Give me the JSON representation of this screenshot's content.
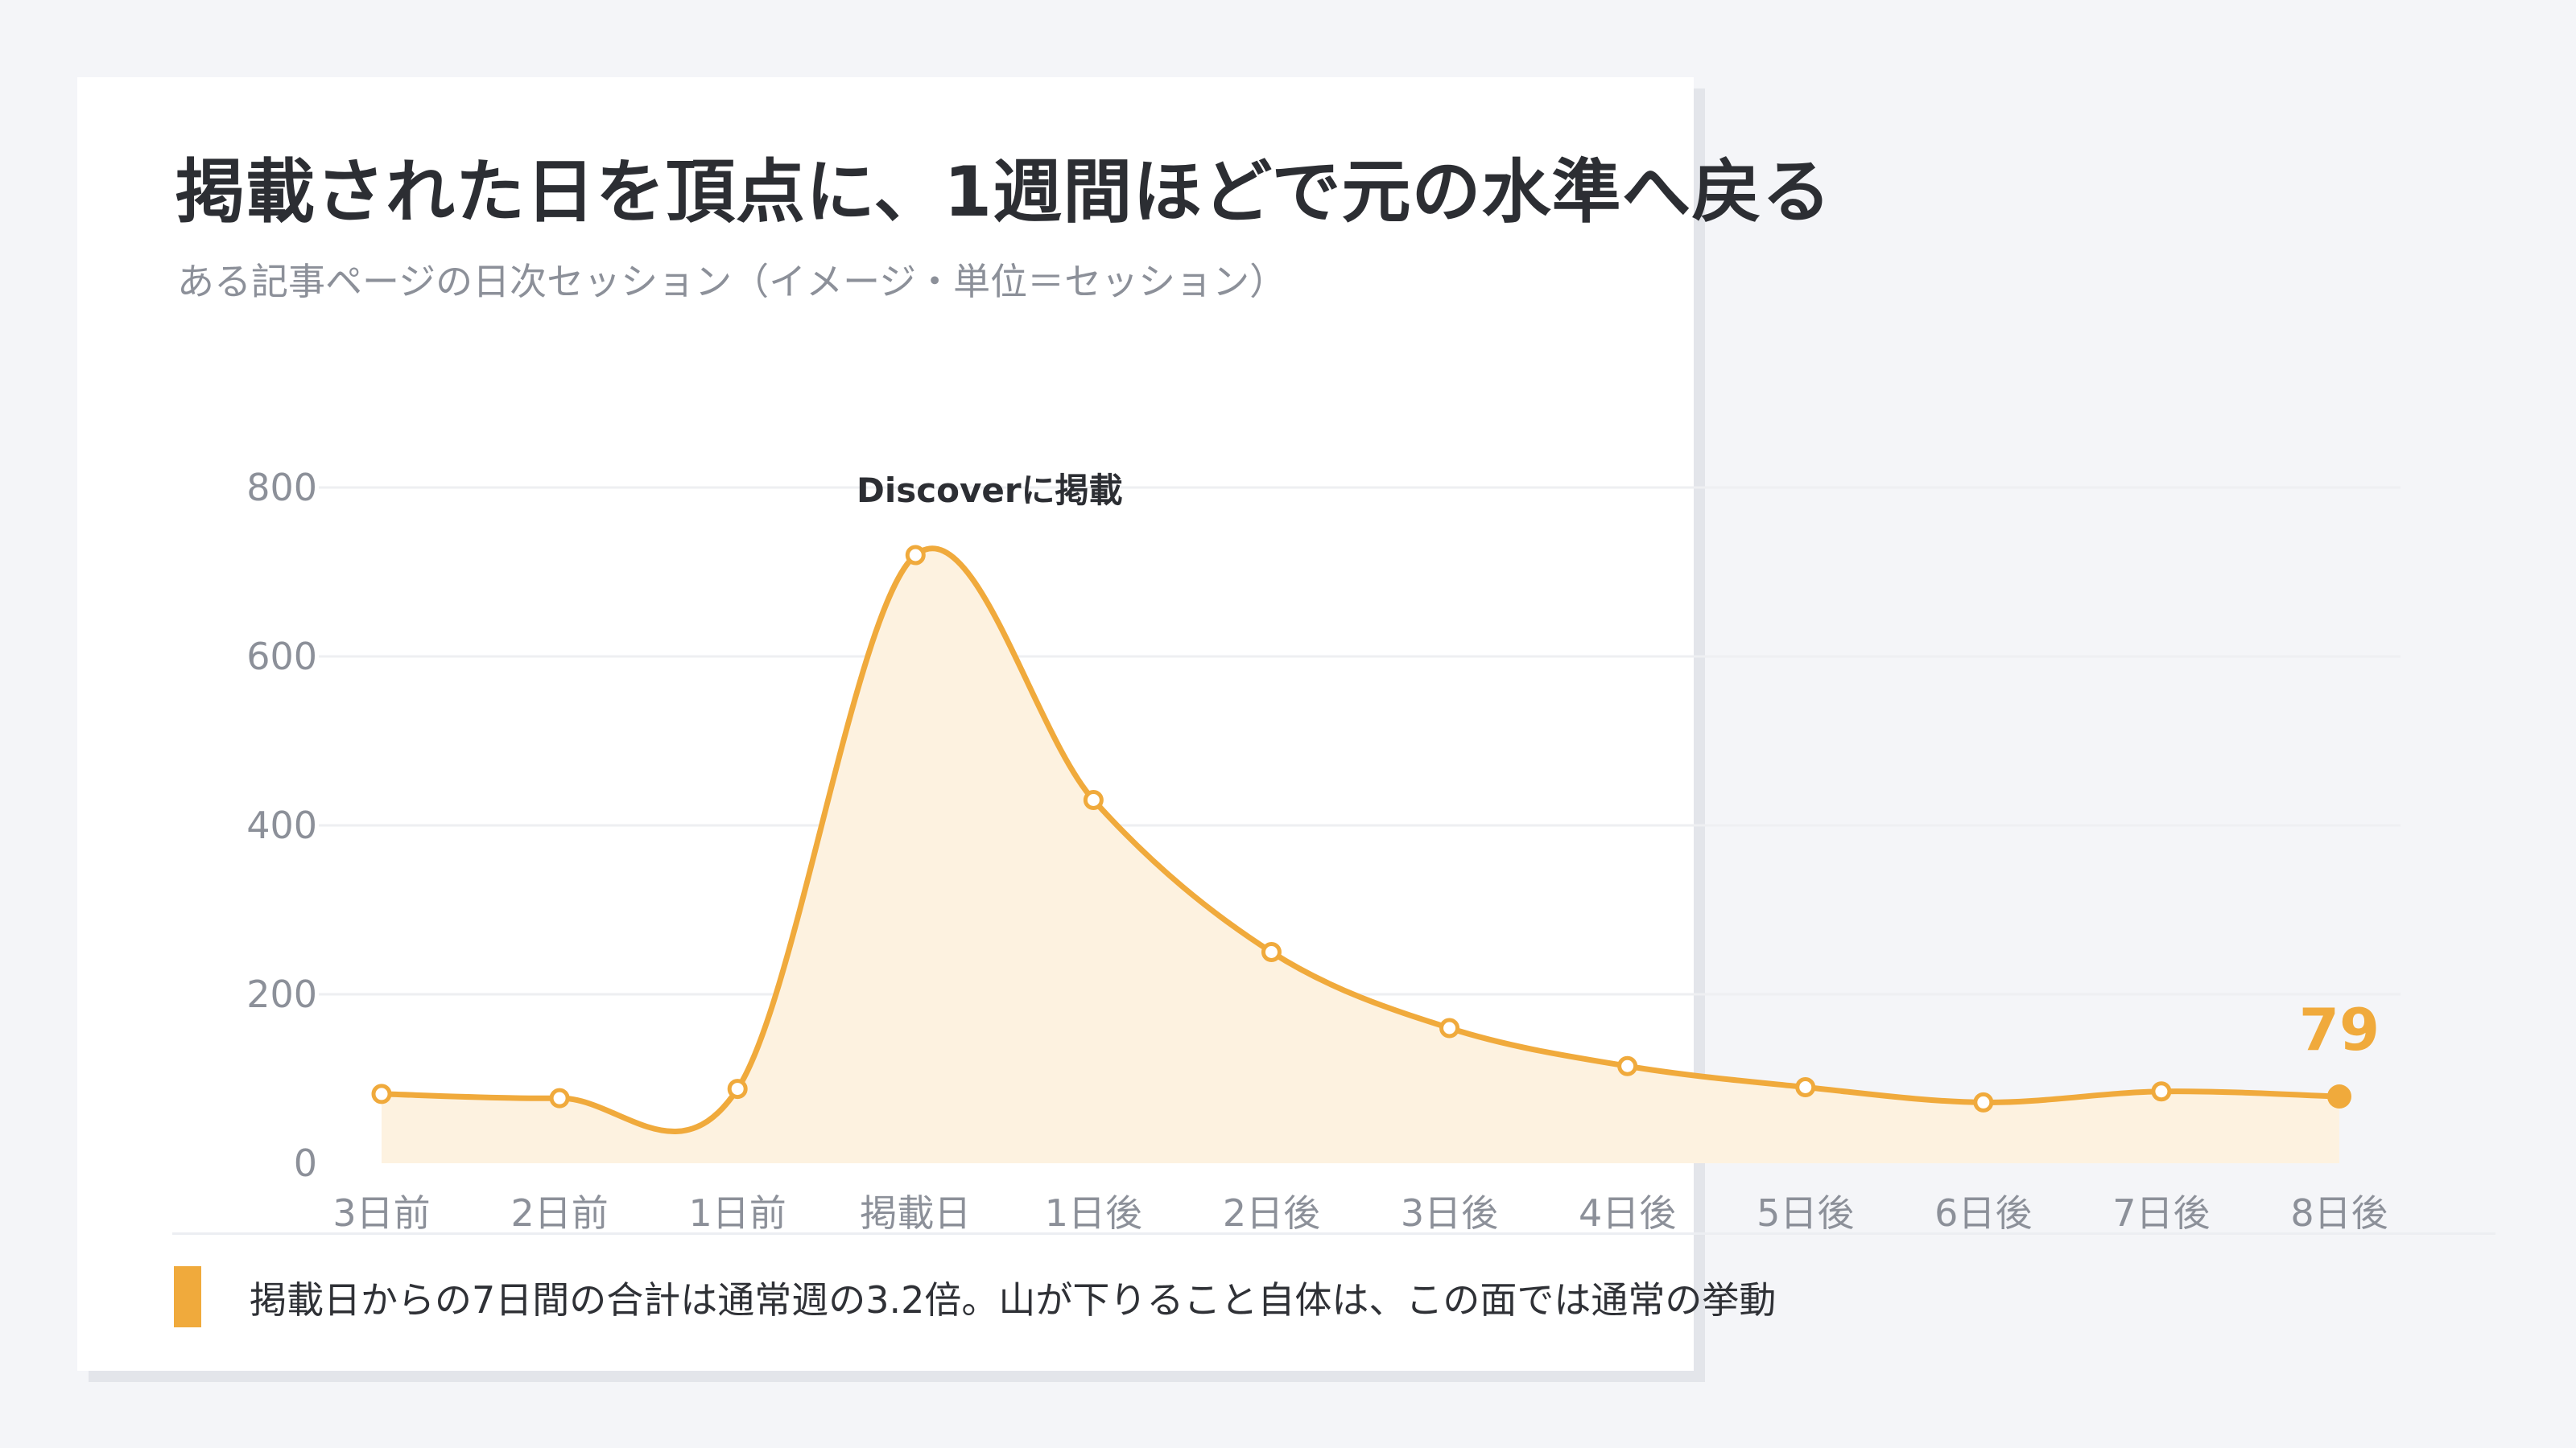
{
  "title": "掲載された日を頂点に、1週間ほどで元の水準へ戻る",
  "subtitle": "ある記事ページの日次セッション（イメージ・単位＝セッション）",
  "footer_note": "掲載日からの7日間の合計は通常週の3.2倍。山が下りること自体は、この面では通常の挙動",
  "colors": {
    "accent": "#f0aa3c",
    "area_fill": "#fdf2e0",
    "grid": "#eeeff2",
    "axis_text": "#8c9099",
    "title_text": "#2c2e33"
  },
  "chart_data": {
    "type": "area",
    "title": "",
    "xlabel": "",
    "ylabel": "",
    "categories": [
      "3日前",
      "2日前",
      "1日前",
      "掲載日",
      "1日後",
      "2日後",
      "3日後",
      "4日後",
      "5日後",
      "6日後",
      "7日後",
      "8日後"
    ],
    "series": [
      {
        "values": [
          82,
          77,
          88,
          720,
          430,
          250,
          160,
          115,
          90,
          72,
          85,
          79
        ]
      }
    ],
    "ylim": [
      0,
      800
    ],
    "yticks": [
      0,
      200,
      400,
      600,
      800
    ],
    "grid": true,
    "annotations": [
      {
        "category": "掲載日",
        "text": "Discoverに掲載"
      },
      {
        "category": "8日後",
        "text": "79"
      }
    ]
  }
}
